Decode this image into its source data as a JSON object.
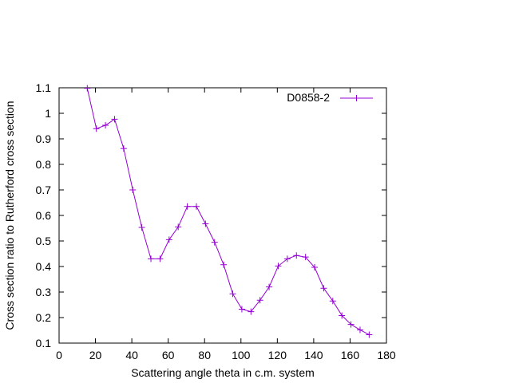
{
  "chart_data": {
    "type": "line",
    "title": "",
    "xlabel": "Scattering angle theta in c.m. system",
    "ylabel": "Cross section ratio to Rutherford cross section",
    "xlim": [
      0,
      180
    ],
    "ylim": [
      0.1,
      1.1
    ],
    "xticks": [
      "0",
      "20",
      "40",
      "60",
      "80",
      "100",
      "120",
      "140",
      "160",
      "180"
    ],
    "yticks": [
      "0.1",
      "0.2",
      "0.3",
      "0.4",
      "0.5",
      "0.6",
      "0.7",
      "0.8",
      "0.9",
      "1",
      "1.1"
    ],
    "grid": false,
    "legend_position": "top-right",
    "marker": "plus",
    "series": [
      {
        "name": "D0858-2",
        "color": "#9400d3",
        "x": [
          15.5,
          20.5,
          25.5,
          30.5,
          35.5,
          40.5,
          45.5,
          50.5,
          55.5,
          60.5,
          65.5,
          70.5,
          75.5,
          80.5,
          85.5,
          90.5,
          95.5,
          100.5,
          105.5,
          110.5,
          115.5,
          120.5,
          125.5,
          130.5,
          135.5,
          140.5,
          145.5,
          150.5,
          155.5,
          160.5,
          165.5,
          170.5
        ],
        "y": [
          1.098,
          0.94,
          0.953,
          0.977,
          0.862,
          0.7,
          0.553,
          0.43,
          0.43,
          0.505,
          0.555,
          0.635,
          0.635,
          0.567,
          0.495,
          0.407,
          0.293,
          0.233,
          0.223,
          0.268,
          0.32,
          0.402,
          0.43,
          0.443,
          0.437,
          0.397,
          0.315,
          0.265,
          0.208,
          0.173,
          0.152,
          0.133
        ]
      }
    ]
  }
}
